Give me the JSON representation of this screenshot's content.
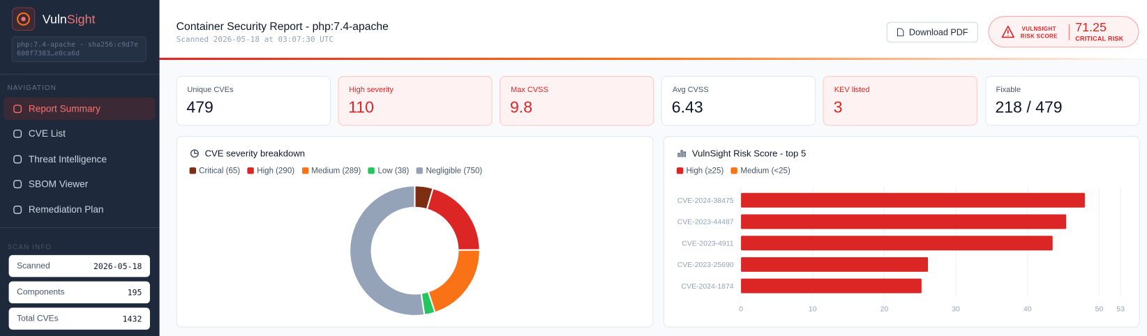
{
  "sidebar": {
    "brand": [
      "Vuln",
      "Sight"
    ],
    "image": "php:7.4-apache · sha256:c9d7e608f7383…e0ca6d",
    "nav_heading": "NAVIGATION",
    "nav": [
      "Report Summary",
      "CVE List",
      "Threat Intelligence",
      "SBOM Viewer",
      "Remediation Plan"
    ],
    "active": 0,
    "scan_heading": "SCAN INFO",
    "scan_info": [
      {
        "label": "Scanned",
        "value": "2026-05-18"
      },
      {
        "label": "Components",
        "value": 195
      },
      {
        "label": "Total CVEs",
        "value": 1432
      }
    ]
  },
  "header": {
    "title": "Container Security Report - php:7.4-apache",
    "subtitle": "Scanned 2026-05-18 at 03:07:30 UTC",
    "download": "Download PDF",
    "risk_label": [
      "VULNSIGHT",
      "RISK SCORE"
    ],
    "risk_score": 71.25,
    "risk_level": "CRITICAL RISK"
  },
  "stats": [
    {
      "label": "Unique CVEs",
      "value": 479,
      "alert": false
    },
    {
      "label": "High severity",
      "value": 110,
      "alert": true
    },
    {
      "label": "Max CVSS",
      "value": 9.8,
      "alert": true
    },
    {
      "label": "Avg CVSS",
      "value": 6.43,
      "alert": false
    },
    {
      "label": "KEV listed",
      "value": 3,
      "alert": true
    },
    {
      "label": "Fixable",
      "value": "218 / 479",
      "alert": false
    }
  ],
  "chart_data": [
    {
      "type": "pie",
      "title": "CVE severity breakdown",
      "donut": true,
      "categories": [
        "Critical (65)",
        "High (290)",
        "Medium (289)",
        "Low (38)",
        "Negligible (750)"
      ],
      "values": [
        65,
        290,
        289,
        38,
        750
      ],
      "colors": [
        "#7c2d12",
        "#dc2626",
        "#f97316",
        "#22c55e",
        "#94a3b8"
      ]
    },
    {
      "type": "bar",
      "orientation": "horizontal",
      "title": "VulnSight Risk Score - top 5",
      "legend": [
        {
          "name": "High (≥25)",
          "color": "#dc2626"
        },
        {
          "name": "Medium (<25)",
          "color": "#f97316"
        }
      ],
      "categories": [
        "CVE-2024-38475",
        "CVE-2023-44487",
        "CVE-2023-4911",
        "CVE-2023-25690",
        "CVE-2024-1874"
      ],
      "values": [
        48,
        45.4,
        43.5,
        26.1,
        25.2
      ],
      "bar_colors": [
        "#dc2626",
        "#dc2626",
        "#dc2626",
        "#dc2626",
        "#dc2626"
      ],
      "xlim": [
        0,
        53
      ],
      "xticks": [
        0,
        10,
        20,
        30,
        40,
        50,
        53
      ],
      "grid": true
    }
  ]
}
